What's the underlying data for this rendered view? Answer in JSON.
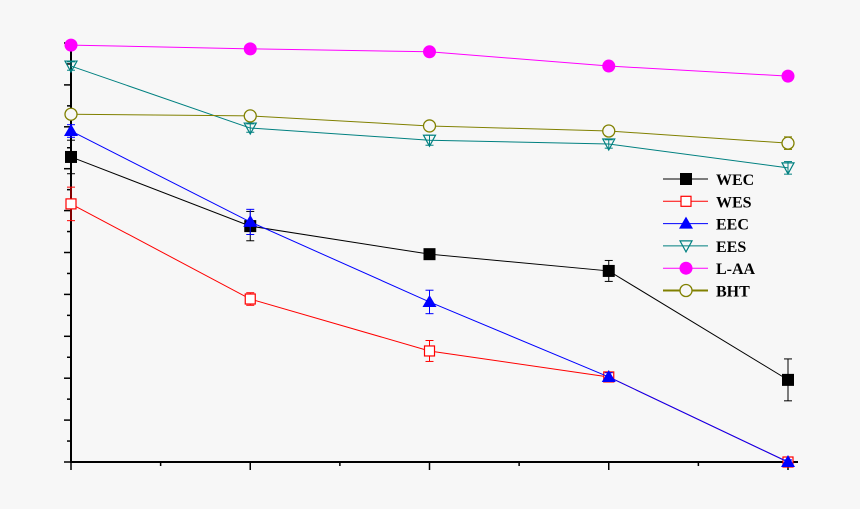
{
  "chart_data": {
    "type": "line",
    "title": "",
    "xlabel": "",
    "ylabel": "",
    "x": [
      1,
      2,
      3,
      4,
      5
    ],
    "xlim": [
      1,
      5
    ],
    "ylim": [
      0,
      100
    ],
    "y_tick_step": 5,
    "tick_labels_shown": false,
    "grid": false,
    "legend_position": "right",
    "series": [
      {
        "name": "WEC",
        "color": "#000000",
        "marker": "filled-square",
        "values": [
          72.8,
          56.3,
          49.6,
          45.6,
          19.6
        ],
        "errors": [
          4,
          3.5,
          1,
          2.5,
          5
        ]
      },
      {
        "name": "WES",
        "color": "#ff0000",
        "marker": "open-square",
        "values": [
          61.6,
          38.9,
          26.5,
          20.3,
          0
        ],
        "errors": [
          4,
          1.5,
          2.5,
          1,
          0.5
        ]
      },
      {
        "name": "EEC",
        "color": "#0000ff",
        "marker": "filled-triangle-up",
        "values": [
          79,
          57.3,
          38.2,
          20.3,
          0
        ],
        "errors": [
          1.5,
          3,
          2.8,
          1,
          0.5
        ]
      },
      {
        "name": "EES",
        "color": "#008080",
        "marker": "open-triangle-down",
        "values": [
          94.5,
          79.7,
          76.8,
          75.9,
          70.2
        ],
        "errors": [
          1,
          1,
          1.2,
          1,
          1.5
        ]
      },
      {
        "name": "L-AA",
        "color": "#ff00ff",
        "marker": "filled-circle",
        "values": [
          99.5,
          98.6,
          97.9,
          94.5,
          92.1
        ],
        "errors": [
          0.5,
          0.5,
          0.5,
          0.5,
          0.5
        ]
      },
      {
        "name": "BHT",
        "color": "#808000",
        "marker": "open-circle",
        "values": [
          83,
          82.6,
          80.2,
          79,
          76.1
        ],
        "errors": [
          1,
          1,
          1,
          1,
          1.5
        ]
      }
    ]
  }
}
